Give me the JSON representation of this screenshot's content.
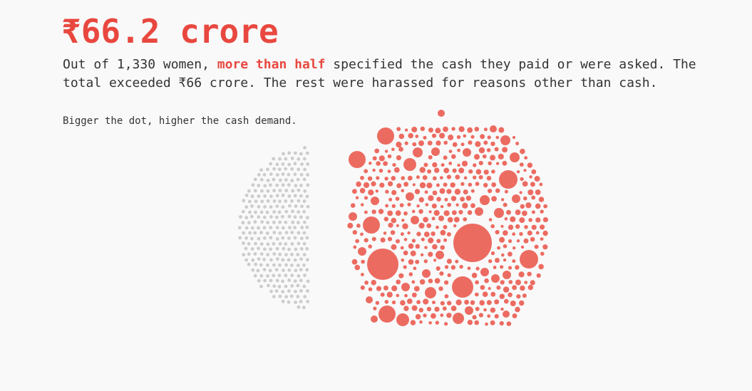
{
  "header": {
    "headline": "₹66.2 crore",
    "desc_part1": "Out of 1,330 women, ",
    "desc_highlight": "more than half",
    "desc_part2": " specified the cash they paid or were asked. The total exceeded ₹66 crore. The rest were harassed for reasons other than cash.",
    "note": "Bigger the dot, higher the cash demand."
  },
  "colors": {
    "accent": "#e8483f",
    "cash_dot": "#ec6b61",
    "other_dot": "#cccccc",
    "background": "#f9f9f9"
  },
  "chart_data": {
    "type": "bubble-cluster",
    "total_women": 1330,
    "total_cash_crore": 66.2,
    "groups": [
      {
        "id": "cash",
        "color": "#ec6b61",
        "share_description": "more than half"
      },
      {
        "id": "other",
        "color": "#cccccc",
        "share_description": "the rest"
      }
    ]
  }
}
